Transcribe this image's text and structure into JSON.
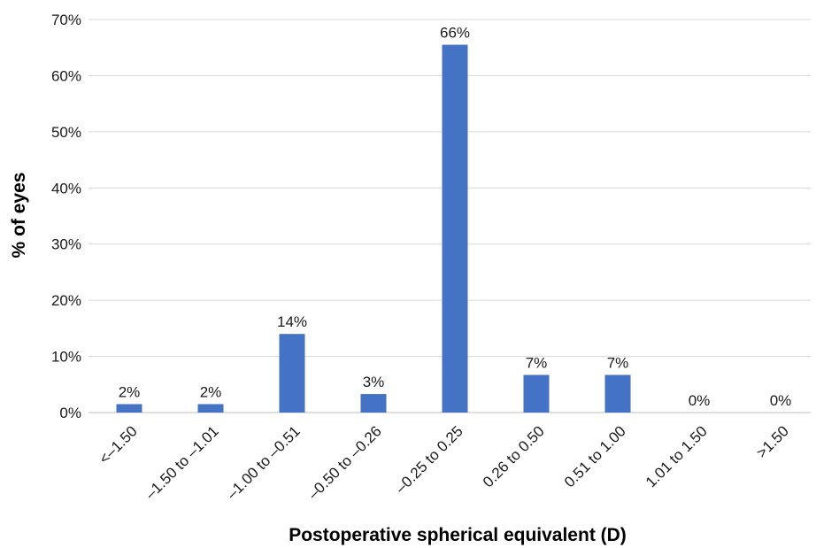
{
  "chart_data": {
    "type": "bar",
    "title": "",
    "xlabel": "Postoperative spherical equivalent (D)",
    "ylabel": "% of eyes",
    "categories": [
      "<–1.50",
      "–1.50 to –1.01",
      "–1.00 to –0.51",
      "–0.50 to –0.26",
      "–0.25 to 0.25",
      "0.26 to 0.50",
      "0.51 to 1.00",
      "1.01 to 1.50",
      ">1.50"
    ],
    "values": [
      1.5,
      1.5,
      14,
      3.3,
      65.5,
      6.7,
      6.7,
      0,
      0
    ],
    "data_labels": [
      "2%",
      "2%",
      "14%",
      "3%",
      "66%",
      "7%",
      "7%",
      "0%",
      "0%"
    ],
    "ylim": [
      0,
      70
    ],
    "yticks": [
      0,
      10,
      20,
      30,
      40,
      50,
      60,
      70
    ],
    "ytick_labels": [
      "0%",
      "10%",
      "20%",
      "30%",
      "40%",
      "50%",
      "60%",
      "70%"
    ],
    "grid": true,
    "bar_color": "#4472c4",
    "grid_color": "#d9d9d9"
  }
}
